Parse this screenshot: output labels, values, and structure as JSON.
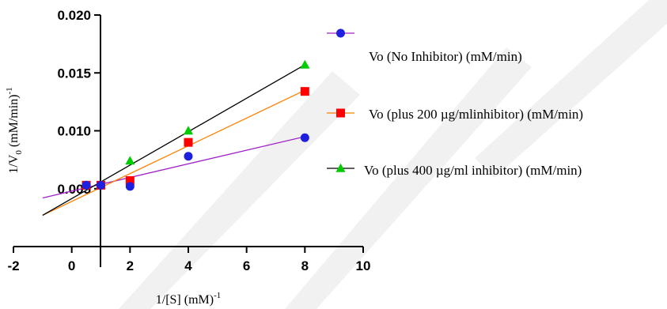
{
  "chart_data": {
    "type": "scatter",
    "title": "",
    "xlabel": "1/[S] (mM)",
    "xlabel_sup": "-1",
    "ylabel": "1/V",
    "ylabel_sub": "0",
    "ylabel_tail": " (mM/min)",
    "ylabel_sup": "-1",
    "xlim": [
      -2,
      10
    ],
    "ylim": [
      0.0,
      0.02
    ],
    "x_ticks": [
      -2,
      0,
      2,
      4,
      6,
      8,
      10
    ],
    "x_tick_labels": [
      "-2",
      "0",
      "2",
      "4",
      "6",
      "8",
      "10"
    ],
    "y_ticks": [
      0.005,
      0.01,
      0.015,
      0.02
    ],
    "y_tick_labels": [
      "0.005",
      "0.010",
      "0.015",
      "0.020"
    ],
    "grid": false,
    "legend_position": "right",
    "series": [
      {
        "name": "Vo (No Inhibitor) (mM/min)",
        "color": "#1f1fe0",
        "line_color": "#a020c8",
        "marker": "circle",
        "x": [
          0.5,
          1,
          2,
          4,
          8
        ],
        "y": [
          0.0053,
          0.0053,
          0.0052,
          0.0078,
          0.0094
        ],
        "fit": {
          "x": [
            -1,
            8
          ],
          "y": [
            0.0042,
            0.0095
          ]
        }
      },
      {
        "name": "Vo (plus 200 µg/mlinhibitor) (mM/min)",
        "color": "#ff0000",
        "line_color": "#ff8000",
        "marker": "square",
        "x": [
          0.5,
          1,
          2,
          4,
          8
        ],
        "y": [
          0.0053,
          0.0053,
          0.0057,
          0.009,
          0.0134
        ],
        "fit": {
          "x": [
            -1,
            8
          ],
          "y": [
            0.0027,
            0.0135
          ]
        }
      },
      {
        "name": "Vo (plus 400 µg/ml inhibitor) (mM/min)",
        "color": "#00cc00",
        "line_color": "#000000",
        "marker": "triangle",
        "x": [
          0.5,
          1,
          2,
          4,
          8
        ],
        "y": [
          0.0053,
          0.0053,
          0.0074,
          0.01,
          0.0157
        ],
        "fit": {
          "x": [
            -1,
            8
          ],
          "y": [
            0.0027,
            0.0157
          ]
        }
      }
    ]
  }
}
